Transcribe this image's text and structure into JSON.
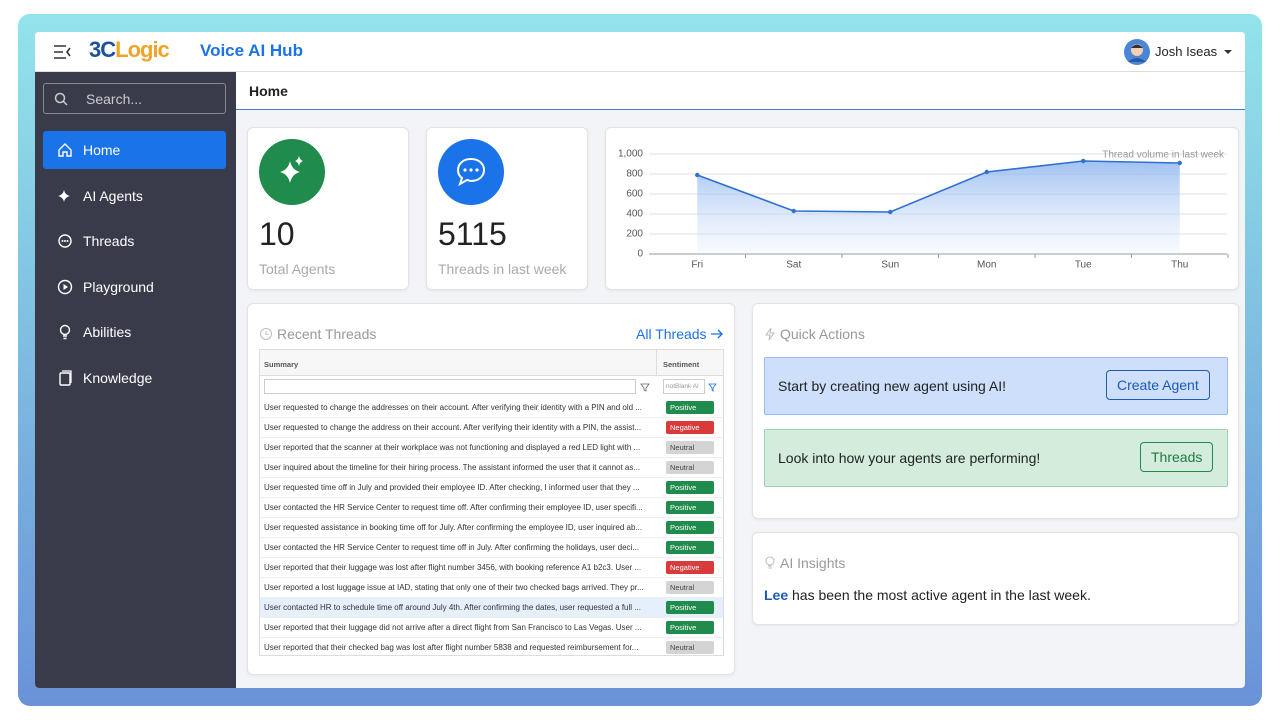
{
  "header": {
    "brand_prefix": "3C",
    "brand_suffix": "Logic",
    "app_title": "Voice AI Hub",
    "user_name": "Josh Iseas"
  },
  "sidebar": {
    "search_placeholder": "Search...",
    "nav": [
      "Home",
      "AI Agents",
      "Threads",
      "Playground",
      "Abilities",
      "Knowledge"
    ]
  },
  "page_title": "Home",
  "stats": [
    {
      "value": 10,
      "label": "Total Agents"
    },
    {
      "value": 5115,
      "label": "Threads in last week"
    }
  ],
  "chart_data": {
    "type": "line",
    "title": "Thread volume in last week",
    "categories": [
      "Fri",
      "Sat",
      "Sun",
      "Mon",
      "Tue",
      "Thu"
    ],
    "values": [
      790,
      430,
      420,
      820,
      930,
      910
    ],
    "color": "#2f6fd0",
    "ylim": [
      0,
      1000
    ],
    "yticks": [
      0,
      200,
      400,
      600,
      800,
      {
        "value": 1000,
        "label": "1,000"
      }
    ],
    "grid": true
  },
  "recent_threads": {
    "title": "Recent Threads",
    "link": "All Threads",
    "columns": [
      "Summary",
      "Sentiment"
    ],
    "filter_value": "notBlank Al",
    "sentiment_colors": {
      "Positive": {
        "bg": "#1f8b4c",
        "fg": "#ffffff"
      },
      "Negative": {
        "bg": "#d93a3a",
        "fg": "#ffffff"
      },
      "Neutral": {
        "bg": "#d4d4d4",
        "fg": "#444444"
      }
    },
    "rows": [
      {
        "summary": "User requested to change the addresses on their account. After verifying their identity with a PIN and old ...",
        "sentiment": "Positive"
      },
      {
        "summary": "User requested to change the address on their account. After verifying their identity with a PIN, the assist...",
        "sentiment": "Negative"
      },
      {
        "summary": "User reported that the scanner at their workplace was not functioning and displayed a red LED light with ...",
        "sentiment": "Neutral"
      },
      {
        "summary": "User inquired about the timeline for their hiring process. The assistant informed the user that it cannot as...",
        "sentiment": "Neutral"
      },
      {
        "summary": "User requested time off in July and provided their employee ID. After checking, I informed user that they ...",
        "sentiment": "Positive"
      },
      {
        "summary": "User contacted the HR Service Center to request time off. After confirming their employee ID, user specifi...",
        "sentiment": "Positive"
      },
      {
        "summary": "User requested assistance in booking time off for July. After confirming the employee ID, user inquired ab...",
        "sentiment": "Positive"
      },
      {
        "summary": "User contacted the HR Service Center to request time off in July. After confirming the holidays, user deci...",
        "sentiment": "Positive"
      },
      {
        "summary": "User reported that their luggage was lost after flight number 3456, with booking reference A1 b2c3. User ...",
        "sentiment": "Negative"
      },
      {
        "summary": "User reported a lost luggage issue at IAD, stating that only one of their two checked bags arrived. They pr...",
        "sentiment": "Neutral"
      },
      {
        "summary": "User contacted HR to schedule time off around July 4th. After confirming the dates, user requested a full ...",
        "sentiment": "Positive"
      },
      {
        "summary": "User reported that their luggage did not arrive after a direct flight from San Francisco to Las Vegas. User ...",
        "sentiment": "Positive"
      },
      {
        "summary": "User reported that their checked bag was lost after flight number 5838 and requested reimbursement for...",
        "sentiment": "Neutral"
      }
    ]
  },
  "quick_actions": {
    "title": "Quick Actions",
    "items": [
      {
        "text": "Start by creating new agent using AI!",
        "button": "Create Agent"
      },
      {
        "text": "Look into how your agents are performing!",
        "button": "Threads"
      }
    ]
  },
  "insights": {
    "title": "AI Insights",
    "agent": "Lee",
    "text": "has been the most active agent in the last week."
  }
}
